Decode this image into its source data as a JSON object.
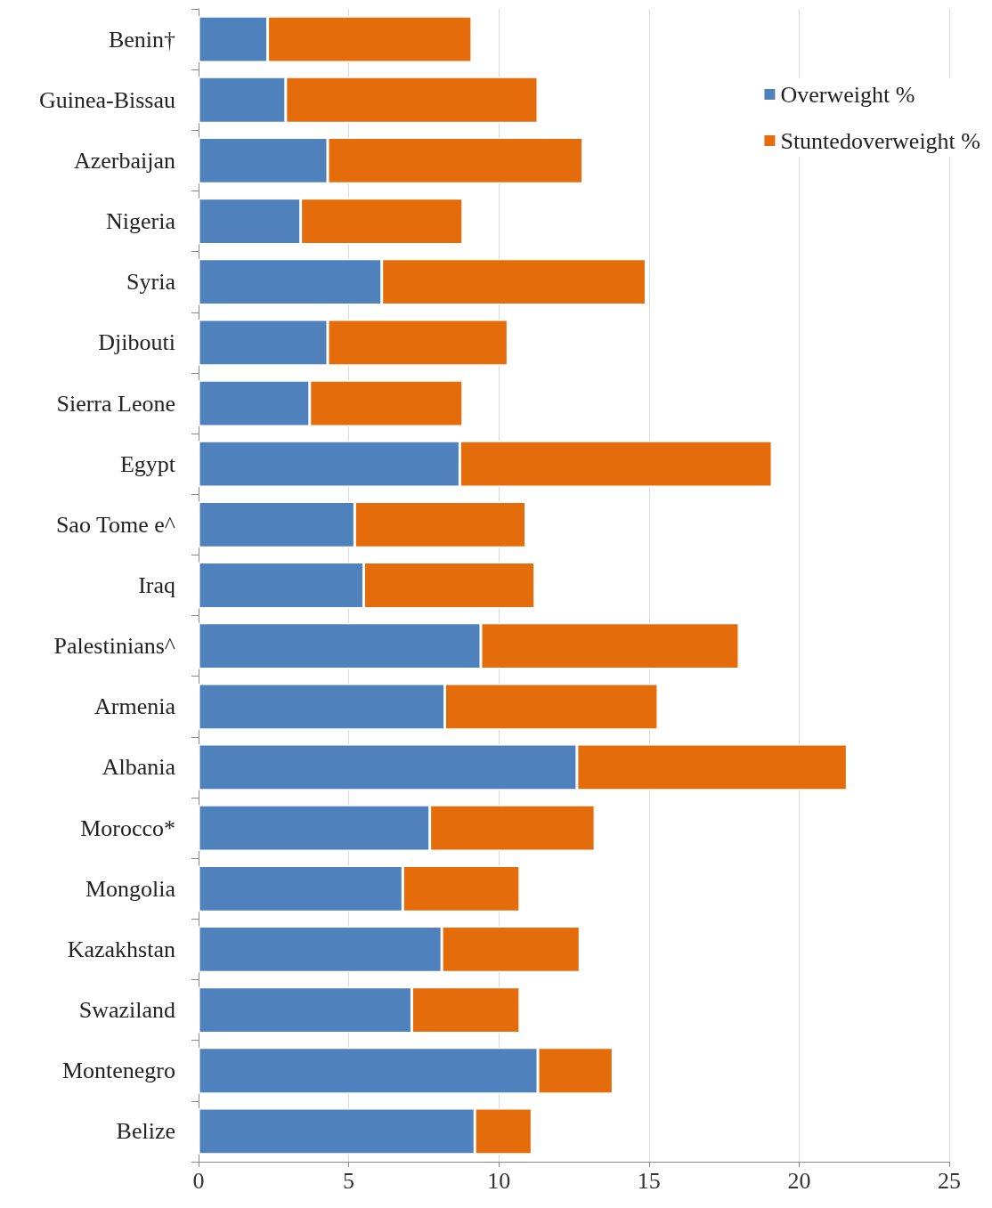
{
  "chart_data": {
    "type": "bar",
    "orientation": "horizontal",
    "stacked": true,
    "categories": [
      "Benin†",
      "Guinea-Bissau",
      "Azerbaijan",
      "Nigeria",
      "Syria",
      "Djibouti",
      "Sierra Leone",
      "Egypt",
      "Sao Tome e^",
      "Iraq",
      "Palestinians^",
      "Armenia",
      "Albania",
      "Morocco*",
      "Mongolia",
      "Kazakhstan",
      "Swaziland",
      "Montenegro",
      "Belize"
    ],
    "series": [
      {
        "name": "Overweight %",
        "color": "#4f81bd",
        "values": [
          2.3,
          2.9,
          4.3,
          3.4,
          6.1,
          4.3,
          3.7,
          8.7,
          5.2,
          5.5,
          9.4,
          8.2,
          12.6,
          7.7,
          6.8,
          8.1,
          7.1,
          11.3,
          9.2
        ]
      },
      {
        "name": "Stuntedoverweight %",
        "color": "#e46c0a",
        "values": [
          6.8,
          8.4,
          8.5,
          5.4,
          8.8,
          6.0,
          5.1,
          10.4,
          5.7,
          5.7,
          8.6,
          7.1,
          9.0,
          5.5,
          3.9,
          4.6,
          3.6,
          2.5,
          1.9
        ]
      }
    ],
    "xlim": [
      0,
      25
    ],
    "xticks": [
      0,
      5,
      10,
      15,
      20,
      25
    ],
    "grid": "x",
    "legend": "top right"
  }
}
